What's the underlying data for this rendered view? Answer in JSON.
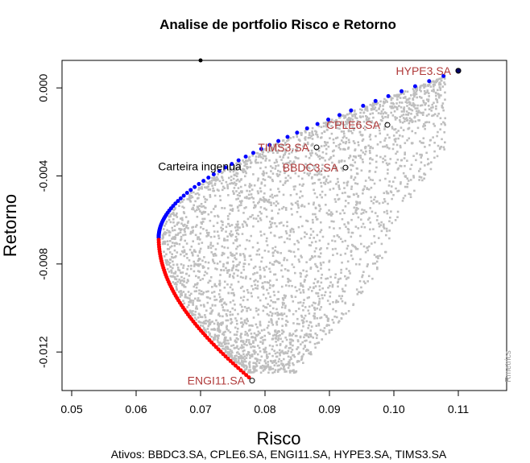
{
  "chart_data": {
    "type": "scatter",
    "title": "Analise de portfolio Risco e Retorno",
    "xlabel": "Risco",
    "ylabel": "Retorno",
    "xlim": [
      0.0485,
      0.1175
    ],
    "ylim": [
      -0.01375,
      0.00125
    ],
    "x_ticks": [
      0.05,
      0.06,
      0.07,
      0.08,
      0.09,
      0.1,
      0.11
    ],
    "x_tick_labels": [
      "0.05",
      "0.06",
      "0.07",
      "0.08",
      "0.09",
      "0.10",
      "0.11"
    ],
    "y_ticks": [
      0.0,
      -0.004,
      -0.008,
      -0.012
    ],
    "y_tick_labels": [
      "0.000",
      "-0.004",
      "-0.008",
      "-0.012"
    ],
    "grid": false,
    "colors": {
      "random_portfolios": "#bebebe",
      "efficient_frontier": "#0000ff",
      "inefficient_frontier": "#ff0000",
      "asset_labels": "#b03a3a"
    },
    "frontier": {
      "min_variance_point": {
        "risk": 0.0635,
        "return": -0.0068
      },
      "upper_end": {
        "risk": 0.11,
        "return": 0.00078
      },
      "lower_end": {
        "risk": 0.0775,
        "return": -0.01315
      }
    },
    "assets": [
      {
        "name": "HYPE3.SA",
        "risk": 0.11,
        "return": 0.00078
      },
      {
        "name": "CPLE6.SA",
        "risk": 0.099,
        "return": -0.00168
      },
      {
        "name": "TIMS3.SA",
        "risk": 0.088,
        "return": -0.0027
      },
      {
        "name": "BBDC3.SA",
        "risk": 0.0925,
        "return": -0.00362
      },
      {
        "name": "ENGI11.SA",
        "risk": 0.078,
        "return": -0.0133
      }
    ],
    "naive_portfolio": {
      "label": "Carteira ingenua",
      "risk": 0.07,
      "return": 0.0014
    },
    "footer": "Ativos:  BBDC3.SA, CPLE6.SA, ENGI11.SA, HYPE3.SA, TIMS3.SA",
    "credit": "Rmetrics"
  }
}
